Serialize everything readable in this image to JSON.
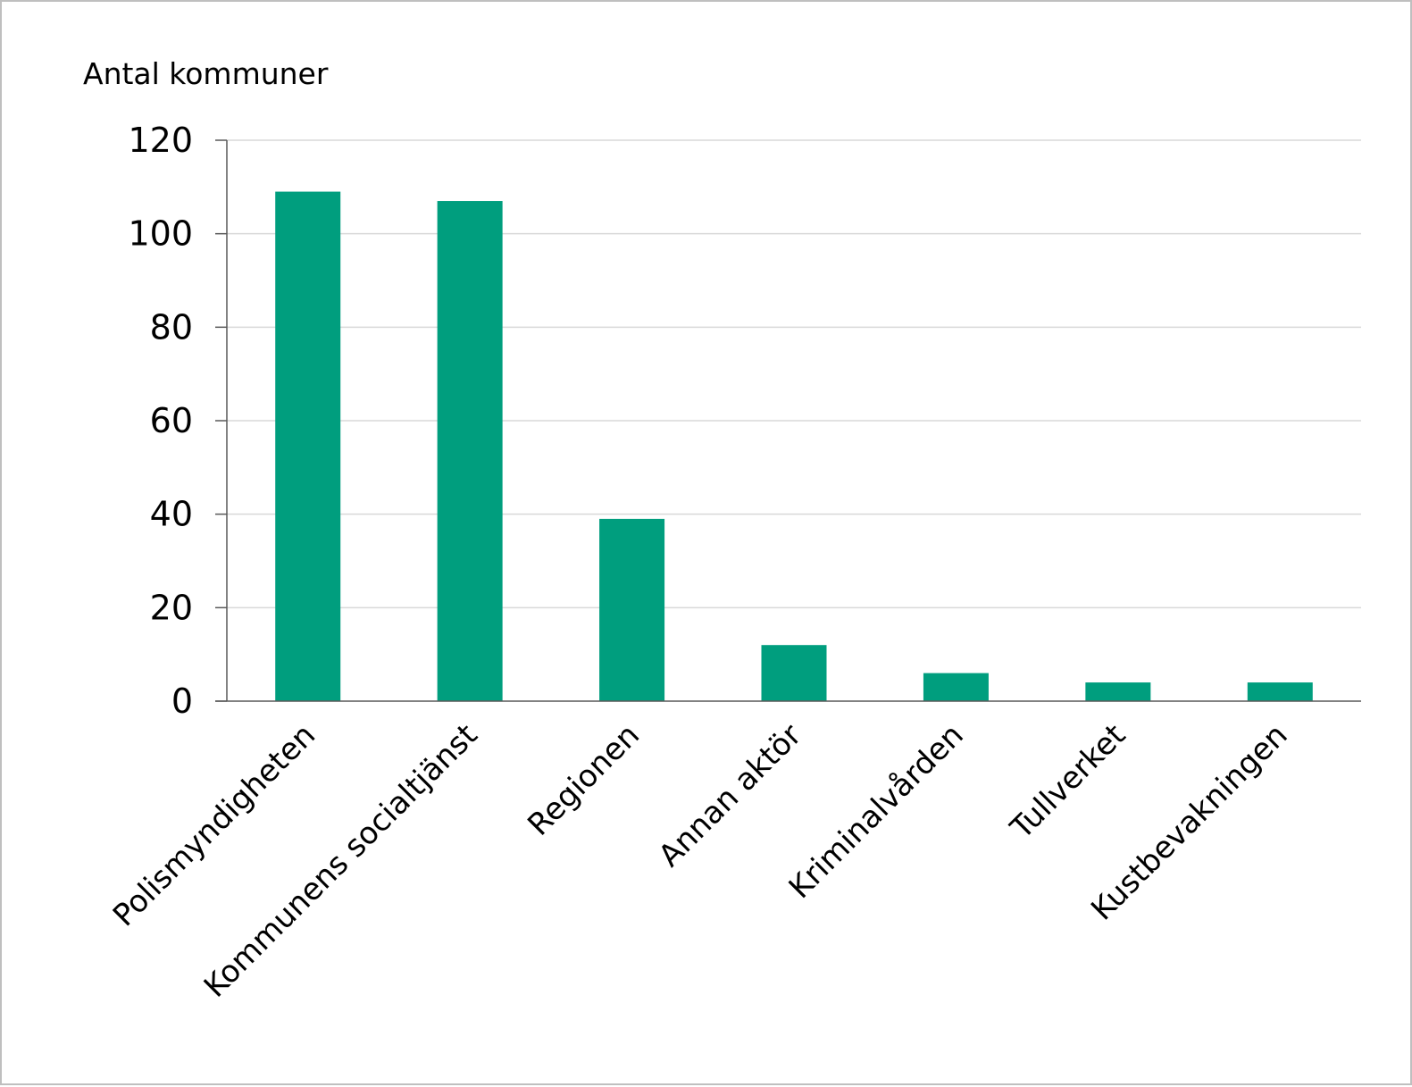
{
  "chart_data": {
    "type": "bar",
    "title": "",
    "xlabel": "",
    "ylabel": "Antal kommuner",
    "ylim": [
      0,
      120
    ],
    "yticks": [
      0,
      20,
      40,
      60,
      80,
      100,
      120
    ],
    "grid": true,
    "legend": "none",
    "categories": [
      "Polismyndigheten",
      "Kommunens socialtjänst",
      "Regionen",
      "Annan aktör",
      "Kriminalvården",
      "Tullverket",
      "Kustbevakningen"
    ],
    "values": [
      109,
      107,
      39,
      12,
      6,
      4,
      4
    ],
    "bar_color": "#009e7e",
    "grid_color": "#d9d9d9",
    "axis_color": "#595959"
  }
}
